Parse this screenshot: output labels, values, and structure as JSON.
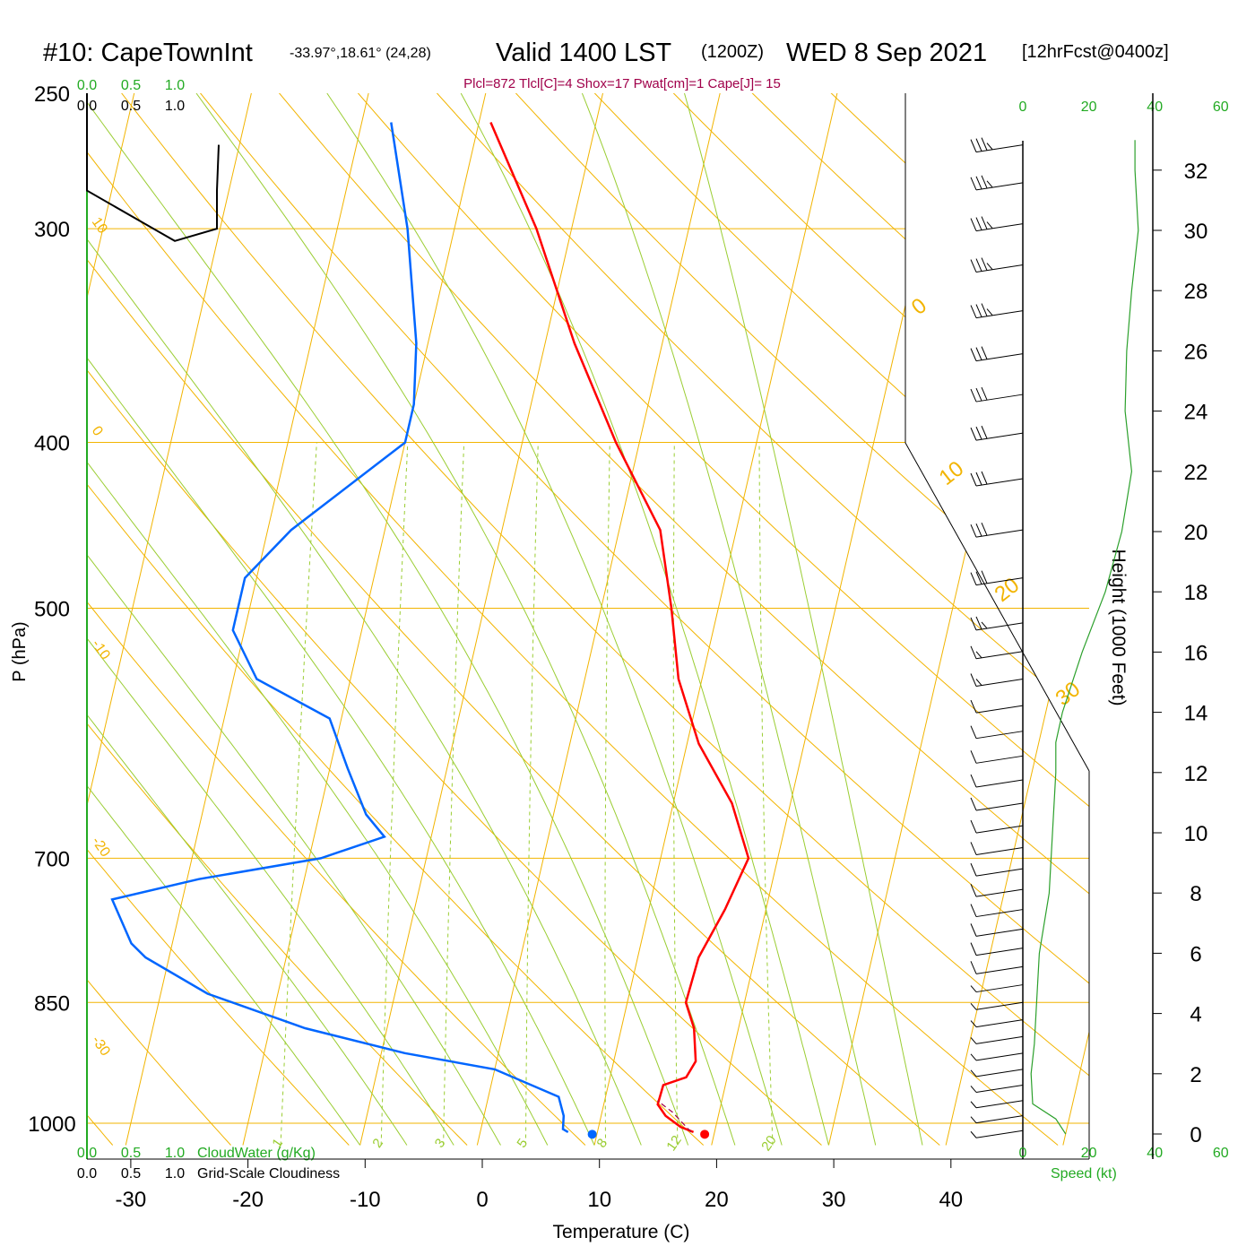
{
  "header": {
    "title_main": "#10: CapeTownInt",
    "title_coords": "-33.97°,18.61° (24,28)",
    "title_valid": "Valid 1400 LST",
    "title_utc": "(1200Z)",
    "title_date": "WED 8 Sep 2021",
    "title_fcst": "[12hrFcst@0400z]",
    "indices": "Plcl=872 Tlcl[C]=4 Shox=17 Pwat[cm]=1 Cape[J]= 15"
  },
  "labels": {
    "pressure_axis": "P (hPa)",
    "temperature_axis": "Temperature (C)",
    "height_axis": "Height (1000 Feet)",
    "cloud_water": "CloudWater (g/Kg)",
    "cloudiness": "Grid-Scale Cloudiness",
    "speed": "Speed (kt)"
  },
  "colors": {
    "isotherm_grid": "#f2b400",
    "adiabat": "#9acd32",
    "temperature": "#ff0000",
    "dewpoint": "#0066ff",
    "wind_speed": "#2ca02c",
    "title_accent": "#a0004a",
    "axis_green": "#22aa22"
  },
  "chart_data": {
    "type": "line",
    "subtype": "skew-T log-P sounding",
    "x_axis": {
      "label": "Temperature (C)",
      "ticks": [
        -30,
        -20,
        -10,
        0,
        10,
        20,
        30,
        40
      ],
      "range": [
        -33,
        49
      ]
    },
    "y_axis": {
      "label": "P (hPa)",
      "scale": "log",
      "ticks": [
        250,
        300,
        400,
        500,
        700,
        850,
        1000
      ],
      "range": [
        1025,
        250
      ]
    },
    "cloud_scale_labels": [
      "0.0",
      "0.5",
      "1.0"
    ],
    "isotherm_labels": [
      "10",
      "0",
      "-10",
      "-20",
      "-30"
    ],
    "isotherm_right_labels": [
      "0",
      "10",
      "20",
      "30"
    ],
    "mixing_ratio_labels": [
      "1",
      "2",
      "3",
      "5",
      "8",
      "12",
      "20"
    ],
    "speed_axis": {
      "label": "Speed (kt)",
      "ticks": [
        "0",
        "20",
        "40",
        "60"
      ]
    },
    "height_axis": {
      "label": "Height (1000 Feet)",
      "ticks": [
        "0",
        "2",
        "4",
        "6",
        "8",
        "10",
        "12",
        "14",
        "16",
        "18",
        "20",
        "22",
        "24",
        "26",
        "28",
        "30",
        "32"
      ]
    },
    "series": [
      {
        "name": "Temperature",
        "points": [
          [
            18.2,
            1012
          ],
          [
            17.0,
            1005
          ],
          [
            15.5,
            990
          ],
          [
            14.6,
            975
          ],
          [
            14.7,
            950
          ],
          [
            16.5,
            940
          ],
          [
            17.0,
            920
          ],
          [
            16.2,
            880
          ],
          [
            15.0,
            850
          ],
          [
            15.2,
            800
          ],
          [
            16.5,
            750
          ],
          [
            17.5,
            700
          ],
          [
            15.0,
            650
          ],
          [
            11.0,
            600
          ],
          [
            8.0,
            550
          ],
          [
            6.0,
            500
          ],
          [
            3.5,
            450
          ],
          [
            -2.0,
            400
          ],
          [
            -7.5,
            350
          ],
          [
            -13.0,
            300
          ],
          [
            -19.0,
            260
          ]
        ]
      },
      {
        "name": "Dewpoint",
        "points": [
          [
            7.5,
            1012
          ],
          [
            7.0,
            1008
          ],
          [
            6.8,
            990
          ],
          [
            6.0,
            965
          ],
          [
            0.0,
            930
          ],
          [
            -8.0,
            910
          ],
          [
            -17.0,
            880
          ],
          [
            -26.0,
            840
          ],
          [
            -32.0,
            800
          ],
          [
            -33.5,
            785
          ],
          [
            -36.0,
            740
          ],
          [
            -29.0,
            720
          ],
          [
            -19.0,
            700
          ],
          [
            -14.0,
            680
          ],
          [
            -16.0,
            660
          ],
          [
            -18.5,
            620
          ],
          [
            -21.0,
            580
          ],
          [
            -28.0,
            550
          ],
          [
            -31.0,
            515
          ],
          [
            -31.0,
            480
          ],
          [
            -28.0,
            450
          ],
          [
            -20.0,
            400
          ],
          [
            -20.0,
            380
          ],
          [
            -21.0,
            350
          ],
          [
            -24.0,
            300
          ],
          [
            -27.5,
            260
          ]
        ]
      },
      {
        "name": "Parcel",
        "points": [
          [
            18.0,
            1012
          ],
          [
            16.0,
            985
          ],
          [
            14.5,
            970
          ]
        ]
      }
    ],
    "surface_markers": {
      "temperature": 19.2,
      "dewpoint": 9.6,
      "pressure": 1015
    },
    "wind_speed_profile": [
      [
        0,
        13.0
      ],
      [
        0.5,
        10.0
      ],
      [
        1.0,
        3.0
      ],
      [
        2.0,
        2.5
      ],
      [
        3.0,
        3.5
      ],
      [
        4.0,
        4.0
      ],
      [
        6.0,
        5.0
      ],
      [
        8.0,
        8.0
      ],
      [
        10.0,
        9.0
      ],
      [
        12.0,
        10.0
      ],
      [
        13.0,
        10.0
      ],
      [
        14.0,
        12.0
      ],
      [
        16.0,
        18.0
      ],
      [
        18.0,
        25.0
      ],
      [
        20.0,
        30.0
      ],
      [
        22.0,
        33.0
      ],
      [
        24.0,
        31.0
      ],
      [
        26.0,
        31.5
      ],
      [
        28.0,
        33.0
      ],
      [
        30.0,
        35.0
      ],
      [
        32.0,
        34.0
      ],
      [
        33.0,
        34.0
      ]
    ],
    "wind_barbs": [
      {
        "p": 1010,
        "speed": 5
      },
      {
        "p": 990,
        "speed": 5
      },
      {
        "p": 970,
        "speed": 5
      },
      {
        "p": 950,
        "speed": 5
      },
      {
        "p": 930,
        "speed": 5
      },
      {
        "p": 910,
        "speed": 5
      },
      {
        "p": 890,
        "speed": 5
      },
      {
        "p": 870,
        "speed": 5
      },
      {
        "p": 850,
        "speed": 5
      },
      {
        "p": 830,
        "speed": 5
      },
      {
        "p": 810,
        "speed": 10
      },
      {
        "p": 790,
        "speed": 10
      },
      {
        "p": 770,
        "speed": 10
      },
      {
        "p": 750,
        "speed": 10
      },
      {
        "p": 730,
        "speed": 10
      },
      {
        "p": 710,
        "speed": 10
      },
      {
        "p": 690,
        "speed": 10
      },
      {
        "p": 670,
        "speed": 10
      },
      {
        "p": 650,
        "speed": 10
      },
      {
        "p": 630,
        "speed": 10
      },
      {
        "p": 610,
        "speed": 10
      },
      {
        "p": 590,
        "speed": 10
      },
      {
        "p": 570,
        "speed": 10
      },
      {
        "p": 550,
        "speed": 15
      },
      {
        "p": 530,
        "speed": 15
      },
      {
        "p": 510,
        "speed": 25
      },
      {
        "p": 480,
        "speed": 30
      },
      {
        "p": 450,
        "speed": 30
      },
      {
        "p": 420,
        "speed": 30
      },
      {
        "p": 395,
        "speed": 30
      },
      {
        "p": 375,
        "speed": 30
      },
      {
        "p": 355,
        "speed": 30
      },
      {
        "p": 335,
        "speed": 35
      },
      {
        "p": 315,
        "speed": 35
      },
      {
        "p": 298,
        "speed": 35
      },
      {
        "p": 282,
        "speed": 35
      },
      {
        "p": 268,
        "speed": 35
      }
    ],
    "cloudiness_profile": [
      [
        0,
        250
      ],
      [
        0,
        268
      ],
      [
        0.0,
        285
      ],
      [
        0.5,
        305
      ],
      [
        0.74,
        300
      ],
      [
        0.74,
        285
      ],
      [
        0.75,
        268
      ]
    ]
  }
}
